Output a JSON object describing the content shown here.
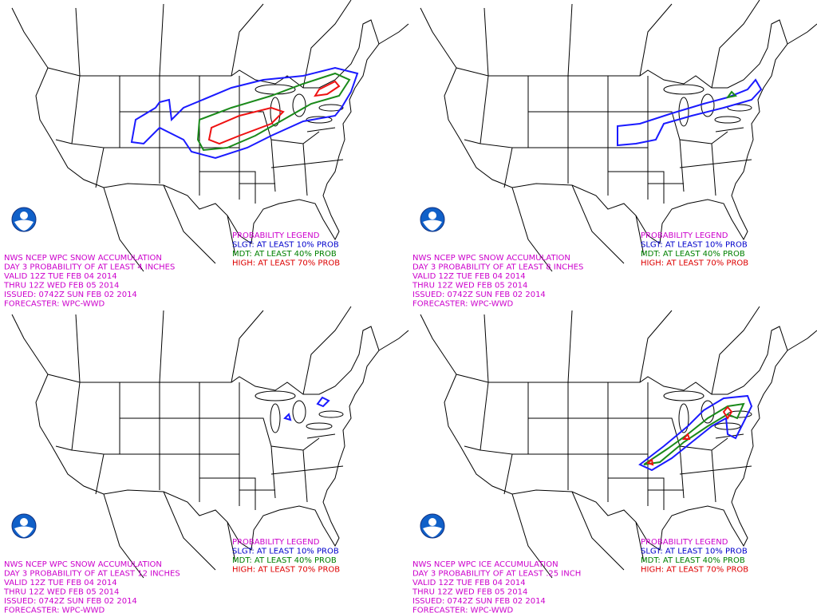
{
  "panels": [
    {
      "info_lines": [
        "NWS NCEP WPC SNOW ACCUMULATION",
        "DAY 3 PROBABILITY OF AT LEAST 4 INCHES",
        "VALID 12Z TUE FEB 04 2014",
        "THRU 12Z WED FEB 05 2014",
        "ISSUED: 0742Z SUN FEB 02 2014",
        "FORECASTER: WPC-WWD"
      ],
      "legend": {
        "title": "PROBABILITY LEGEND",
        "items": [
          "SLGT: AT LEAST 10% PROB",
          "MDT: AT LEAST 40% PROB",
          "HIGH: AT LEAST 70% PROB"
        ]
      }
    },
    {
      "info_lines": [
        "NWS NCEP WPC SNOW ACCUMULATION",
        "DAY 3 PROBABILITY OF AT LEAST 8 INCHES",
        "VALID 12Z TUE FEB 04 2014",
        "THRU 12Z WED FEB 05 2014",
        "ISSUED: 0742Z SUN FEB 02 2014",
        "FORECASTER: WPC-WWD"
      ],
      "legend": {
        "title": "PROBABILITY LEGEND",
        "items": [
          "SLGT: AT LEAST 10% PROB",
          "MDT: AT LEAST 40% PROB",
          "HIGH: AT LEAST 70% PROB"
        ]
      }
    },
    {
      "info_lines": [
        "NWS NCEP WPC SNOW ACCUMULATION",
        "DAY 3 PROBABILITY OF AT LEAST 12 INCHES",
        "VALID 12Z TUE FEB 04 2014",
        "THRU 12Z WED FEB 05 2014",
        "ISSUED: 0742Z SUN FEB 02 2014",
        "FORECASTER: WPC-WWD"
      ],
      "legend": {
        "title": "PROBABILITY LEGEND",
        "items": [
          "SLGT: AT LEAST 10% PROB",
          "MDT: AT LEAST 40% PROB",
          "HIGH: AT LEAST 70% PROB"
        ]
      }
    },
    {
      "info_lines": [
        "NWS NCEP WPC ICE ACCUMULATION",
        "DAY 3 PROBABILITY OF AT LEAST .25 INCH",
        "VALID 12Z TUE FEB 04 2014",
        "THRU 12Z WED FEB 05 2014",
        "ISSUED: 0742Z SUN FEB 02 2014",
        "FORECASTER: WPC-WWD"
      ],
      "legend": {
        "title": "PROBABILITY LEGEND",
        "items": [
          "SLGT: AT LEAST 10% PROB",
          "MDT: AT LEAST 40% PROB",
          "HIGH: AT LEAST 70% PROB"
        ]
      }
    }
  ]
}
